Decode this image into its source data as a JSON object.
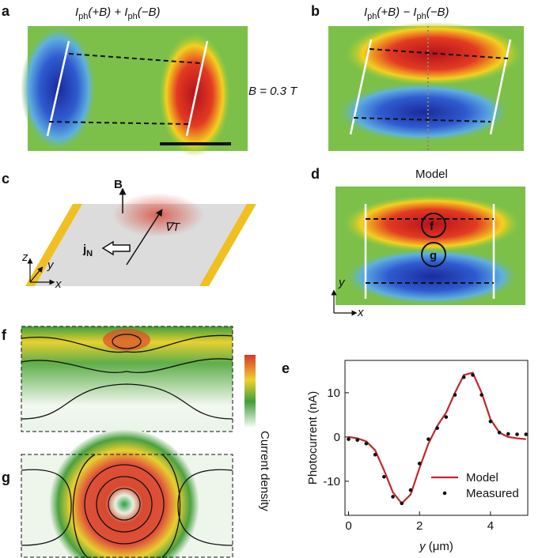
{
  "panels": {
    "a": {
      "label": "a",
      "title": [
        "I",
        "ph",
        "(+B) + ",
        "I",
        "ph",
        "(−B)"
      ]
    },
    "field": "B = 0.3 T",
    "b": {
      "label": "b",
      "title": [
        "I",
        "ph",
        "(+B) − ",
        "I",
        "ph",
        "(−B)"
      ]
    },
    "c": {
      "label": "c",
      "b_label": "B",
      "grad_label": "∇T",
      "j_label": [
        "j",
        "N"
      ],
      "axes": [
        "z",
        "y",
        "x"
      ]
    },
    "d": {
      "label": "d",
      "title": "Model",
      "markers": [
        "f",
        "g"
      ],
      "axes": [
        "y",
        "x"
      ]
    },
    "f": {
      "label": "f"
    },
    "g": {
      "label": "g"
    },
    "colorbar_label": "Current density"
  },
  "chart_data": {
    "type": "line",
    "label": "e",
    "x_label": [
      "y",
      " (μm)"
    ],
    "y_label": "Photocurrent (nA)",
    "x": [
      0,
      0.25,
      0.5,
      0.75,
      1,
      1.25,
      1.5,
      1.75,
      2,
      2.25,
      2.5,
      2.75,
      3,
      3.25,
      3.5,
      3.75,
      4,
      4.25,
      4.5,
      4.75,
      5
    ],
    "series": [
      {
        "name": "Model",
        "color": "#c1272d",
        "mode": "line",
        "values": [
          0,
          -0.3,
          -1,
          -3,
          -7.5,
          -12.5,
          -15,
          -13,
          -7,
          -1.5,
          2.5,
          5.5,
          10,
          14,
          14.5,
          10,
          4,
          1,
          0,
          -0.3,
          -0.5
        ]
      },
      {
        "name": "Measured",
        "color": "#111111",
        "mode": "dots",
        "values": [
          -0.5,
          -0.7,
          -1.5,
          -4,
          -9,
          -13.5,
          -15,
          -12,
          -6,
          -0.5,
          2,
          4.5,
          9.5,
          13.5,
          14,
          9.5,
          3.5,
          1,
          0.7,
          0.6,
          0.6
        ]
      }
    ],
    "xlim": [
      -0.1,
      5.05
    ],
    "ylim": [
      -17.7,
      17.3
    ],
    "xticks": [
      0,
      2,
      4
    ],
    "yticks": [
      -10,
      0,
      10
    ],
    "legend": "lower right"
  }
}
